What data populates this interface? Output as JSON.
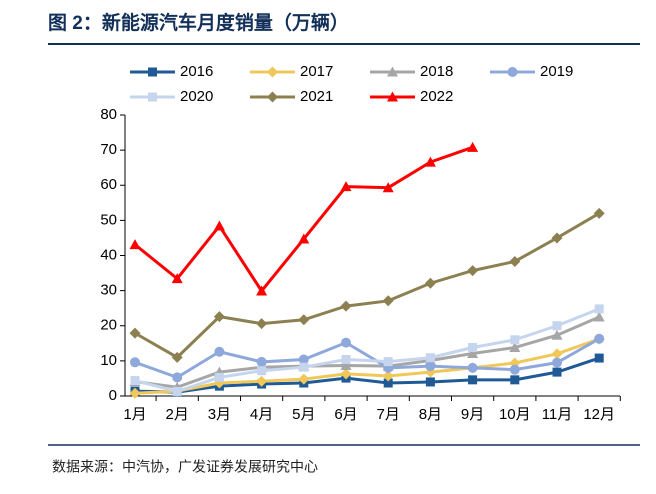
{
  "chart_data": {
    "type": "line",
    "title": "图 2：新能源汽车月度销量（万辆）",
    "source": "数据来源：中汽协，广发证券发展研究中心",
    "categories": [
      "1月",
      "2月",
      "3月",
      "4月",
      "5月",
      "6月",
      "7月",
      "8月",
      "9月",
      "10月",
      "11月",
      "12月"
    ],
    "ylim": [
      0,
      80
    ],
    "yticks": [
      0,
      10,
      20,
      30,
      40,
      50,
      60,
      70,
      80
    ],
    "series": [
      {
        "name": "2016",
        "color": "#1f5a96",
        "marker": "square",
        "values": [
          1.4,
          1.1,
          2.8,
          3.4,
          3.7,
          5.1,
          3.7,
          4.0,
          4.6,
          4.6,
          6.8,
          10.8
        ]
      },
      {
        "name": "2017",
        "color": "#f0c85a",
        "marker": "diamond",
        "values": [
          0.8,
          1.4,
          3.7,
          4.2,
          4.8,
          6.3,
          5.7,
          6.8,
          8.0,
          9.4,
          12.0,
          16.2
        ]
      },
      {
        "name": "2018",
        "color": "#a6a6a6",
        "marker": "triangle",
        "values": [
          4.1,
          2.5,
          6.8,
          8.2,
          8.5,
          8.7,
          8.5,
          10.1,
          12.1,
          13.8,
          17.3,
          22.5
        ]
      },
      {
        "name": "2019",
        "color": "#8fa8dc",
        "marker": "circle",
        "values": [
          9.6,
          5.3,
          12.6,
          9.7,
          10.4,
          15.2,
          8.0,
          8.5,
          8.0,
          7.5,
          9.5,
          16.3
        ]
      },
      {
        "name": "2020",
        "color": "#c5d5ee",
        "marker": "square",
        "values": [
          4.4,
          1.3,
          5.3,
          7.2,
          8.2,
          10.4,
          9.8,
          10.9,
          13.8,
          16.0,
          20.0,
          24.8
        ]
      },
      {
        "name": "2021",
        "color": "#8c8050",
        "marker": "diamond",
        "values": [
          17.9,
          11.0,
          22.6,
          20.6,
          21.7,
          25.6,
          27.1,
          32.1,
          35.7,
          38.3,
          45.0,
          52.0
        ]
      },
      {
        "name": "2022",
        "color": "#ff0000",
        "marker": "triangle",
        "values": [
          43.1,
          33.4,
          48.4,
          29.9,
          44.7,
          59.6,
          59.3,
          66.6,
          70.8,
          null,
          null,
          null
        ]
      }
    ]
  }
}
